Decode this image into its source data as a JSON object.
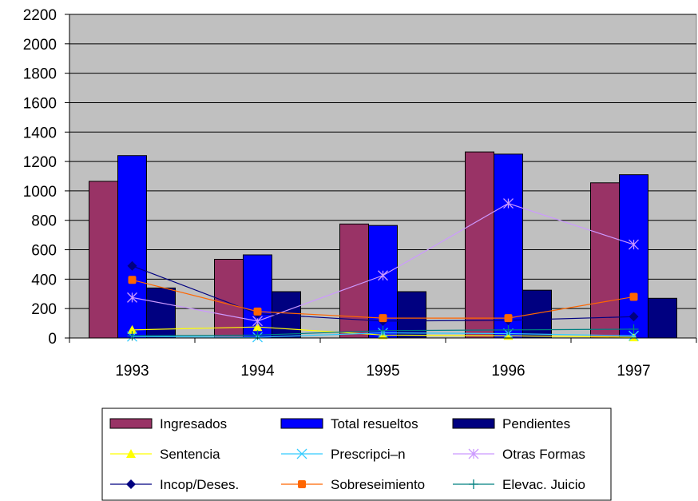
{
  "chart_data": {
    "type": "bar",
    "categories": [
      "1993",
      "1994",
      "1995",
      "1996",
      "1997"
    ],
    "ylim": [
      0,
      2200
    ],
    "yticks": [
      0,
      200,
      400,
      600,
      800,
      1000,
      1200,
      1400,
      1600,
      1800,
      2000,
      2200
    ],
    "grid": true,
    "legend_position": "bottom",
    "bar_series": [
      {
        "name": "Ingresados",
        "color": "#993366",
        "values": [
          1065,
          535,
          775,
          1265,
          1055
        ]
      },
      {
        "name": "Total resueltos",
        "color": "#0000FF",
        "values": [
          1240,
          565,
          765,
          1250,
          1110
        ]
      },
      {
        "name": "Pendientes",
        "color": "#000080",
        "values": [
          340,
          315,
          315,
          325,
          270
        ]
      }
    ],
    "line_series": [
      {
        "name": "Sentencia",
        "color": "#FFFF00",
        "marker": "triangle",
        "values": [
          55,
          75,
          20,
          15,
          5
        ]
      },
      {
        "name": "Prescripci–n",
        "color": "#33CCFF",
        "marker": "x",
        "values": [
          10,
          5,
          35,
          30,
          15
        ]
      },
      {
        "name": "Otras Formas",
        "color": "#CC99FF",
        "marker": "star",
        "values": [
          275,
          115,
          425,
          915,
          635
        ]
      },
      {
        "name": "Incop/Deses.",
        "color": "#000080",
        "marker": "diamond",
        "values": [
          490,
          165,
          115,
          120,
          145
        ]
      },
      {
        "name": "Sobreseimiento",
        "color": "#FF6600",
        "marker": "square",
        "values": [
          395,
          180,
          135,
          135,
          280
        ]
      },
      {
        "name": "Elevac. Juicio",
        "color": "#008080",
        "marker": "plus",
        "values": [
          15,
          20,
          50,
          55,
          60
        ]
      }
    ],
    "legend_order": [
      "Ingresados",
      "Total resueltos",
      "Pendientes",
      "Sentencia",
      "Prescripci–n",
      "Otras Formas",
      "Incop/Deses.",
      "Sobreseimiento",
      "Elevac. Juicio"
    ]
  }
}
